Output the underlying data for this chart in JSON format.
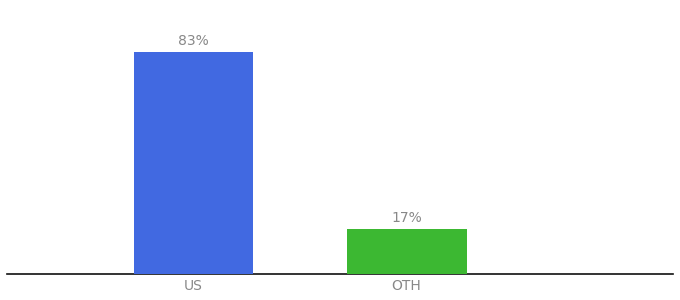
{
  "categories": [
    "US",
    "OTH"
  ],
  "values": [
    83,
    17
  ],
  "bar_colors": [
    "#4169e1",
    "#3cb832"
  ],
  "labels": [
    "83%",
    "17%"
  ],
  "background_color": "#ffffff",
  "label_color": "#888888",
  "label_fontsize": 10,
  "tick_fontsize": 10,
  "tick_color": "#888888",
  "ylim": [
    0,
    100
  ],
  "bar_width": 0.18,
  "xlim": [
    0.0,
    1.0
  ]
}
